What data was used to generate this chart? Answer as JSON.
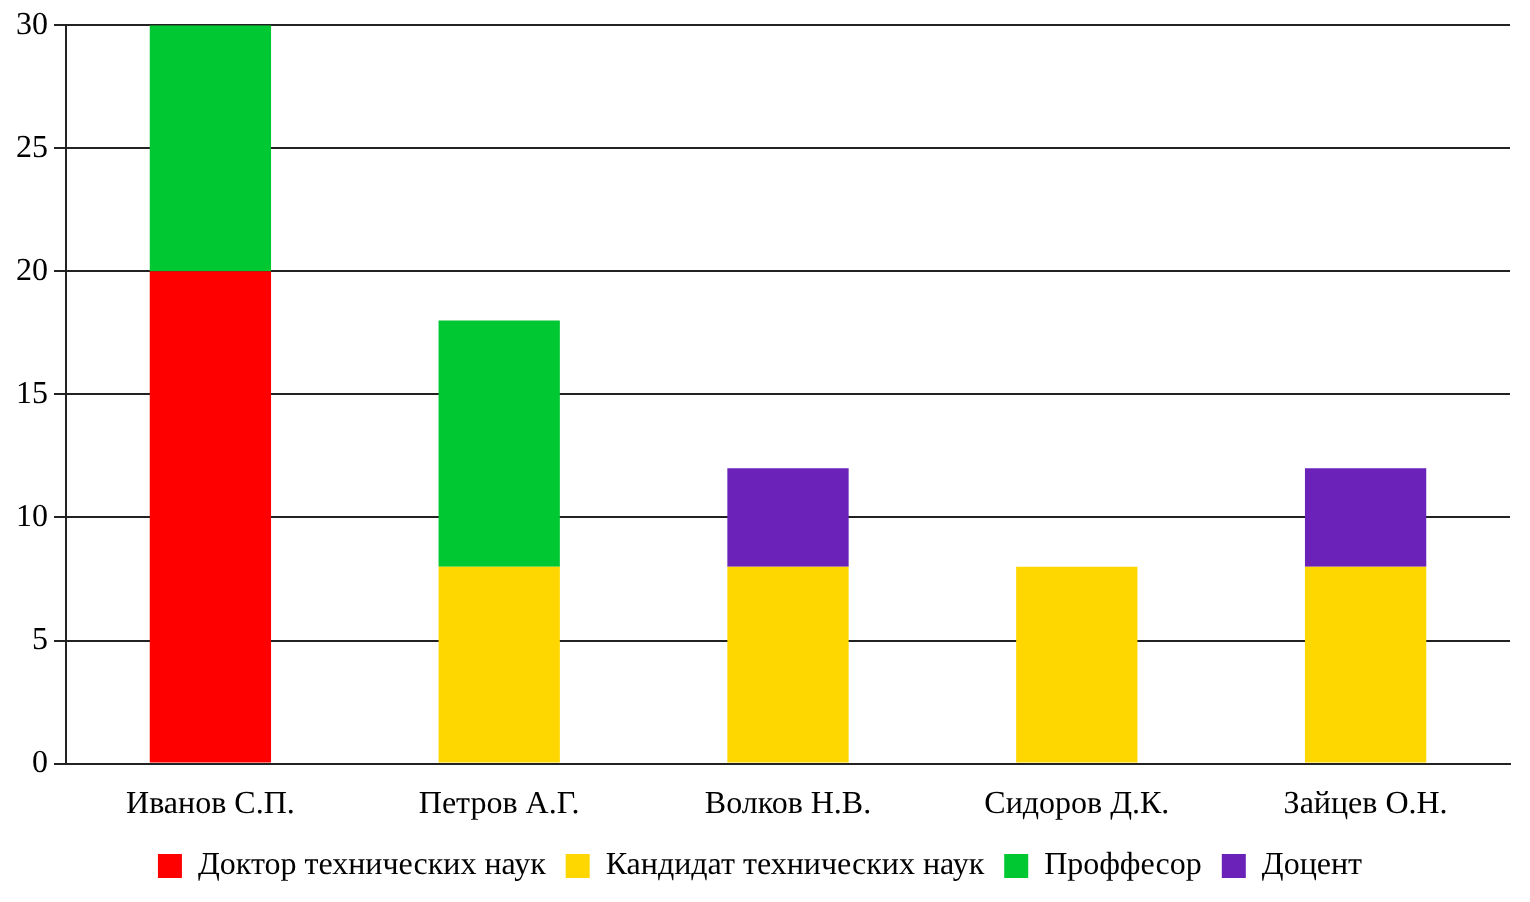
{
  "chart_data": {
    "type": "bar",
    "stacked": true,
    "categories": [
      "Иванов С.П.",
      "Петров А.Г.",
      "Волков Н.В.",
      "Сидоров Д.К.",
      "Зайцев О.Н."
    ],
    "series": [
      {
        "name": "Доктор технических наук",
        "color": "#ff0000",
        "values": [
          20,
          0,
          0,
          0,
          0
        ]
      },
      {
        "name": "Кандидат технических наук",
        "color": "#ffd700",
        "values": [
          0,
          8,
          8,
          8,
          8
        ]
      },
      {
        "name": "Проффесор",
        "color": "#00c832",
        "values": [
          10,
          10,
          0,
          0,
          0
        ]
      },
      {
        "name": "Доцент",
        "color": "#6a22b8",
        "values": [
          0,
          0,
          4,
          0,
          4
        ]
      }
    ],
    "ylim": [
      0,
      30
    ],
    "yticks": [
      0,
      5,
      10,
      15,
      20,
      25,
      30
    ],
    "grid": "y",
    "legend": "bottom"
  }
}
